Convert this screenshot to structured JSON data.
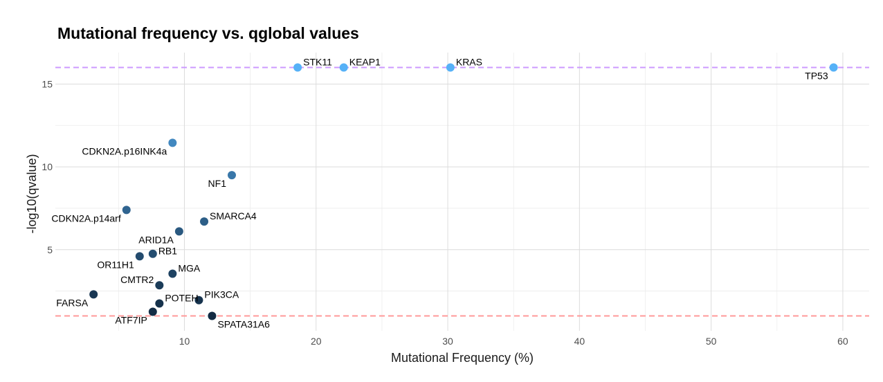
{
  "chart_data": {
    "type": "scatter",
    "title": "Mutational frequency vs. qglobal values",
    "xlabel": "Mutational Frequency (%)",
    "ylabel": "-log10(qvalue)",
    "xlim": [
      0.2,
      62
    ],
    "ylim": [
      0.1,
      16.9
    ],
    "x_ticks": [
      10,
      20,
      30,
      40,
      50,
      60
    ],
    "y_ticks": [
      5,
      10,
      15
    ],
    "grid": true,
    "legend": "none",
    "reference_lines": [
      {
        "y": 16,
        "color": "#cc99ff",
        "style": "dashed"
      },
      {
        "y": 1,
        "color": "#ff9999",
        "style": "dashed"
      }
    ],
    "color_scale": {
      "low": "#132b43",
      "high": "#56b1f7",
      "domain": [
        1,
        16
      ]
    },
    "points": [
      {
        "label": "TP53",
        "x": 59.3,
        "y": 16.0,
        "label_pos": "bottom-left"
      },
      {
        "label": "KRAS",
        "x": 30.2,
        "y": 16.0,
        "label_pos": "top-right"
      },
      {
        "label": "KEAP1",
        "x": 22.1,
        "y": 16.0,
        "label_pos": "top-right"
      },
      {
        "label": "STK11",
        "x": 18.6,
        "y": 16.0,
        "label_pos": "top-right"
      },
      {
        "label": "CDKN2A.p16INK4a",
        "x": 9.1,
        "y": 11.45,
        "label_pos": "bottom-left"
      },
      {
        "label": "NF1",
        "x": 13.6,
        "y": 9.5,
        "label_pos": "bottom-left"
      },
      {
        "label": "CDKN2A.p14arf",
        "x": 5.6,
        "y": 7.4,
        "label_pos": "bottom-left"
      },
      {
        "label": "SMARCA4",
        "x": 11.5,
        "y": 6.7,
        "label_pos": "top-right"
      },
      {
        "label": "ARID1A",
        "x": 9.6,
        "y": 6.1,
        "label_pos": "bottom-left"
      },
      {
        "label": "RB1",
        "x": 7.6,
        "y": 4.75,
        "label_pos": "right"
      },
      {
        "label": "OR11H1",
        "x": 6.6,
        "y": 4.6,
        "label_pos": "bottom-left"
      },
      {
        "label": "MGA",
        "x": 9.1,
        "y": 3.55,
        "label_pos": "top-right"
      },
      {
        "label": "CMTR2",
        "x": 8.1,
        "y": 2.85,
        "label_pos": "top-left"
      },
      {
        "label": "FARSA",
        "x": 3.1,
        "y": 2.3,
        "label_pos": "bottom-left"
      },
      {
        "label": "PIK3CA",
        "x": 11.1,
        "y": 1.95,
        "label_pos": "top-right"
      },
      {
        "label": "POTEH",
        "x": 8.1,
        "y": 1.75,
        "label_pos": "top-right"
      },
      {
        "label": "ATF7IP",
        "x": 7.6,
        "y": 1.25,
        "label_pos": "bottom-left"
      },
      {
        "label": "SPATA31A6",
        "x": 12.1,
        "y": 1.0,
        "label_pos": "bottom-right"
      }
    ]
  }
}
